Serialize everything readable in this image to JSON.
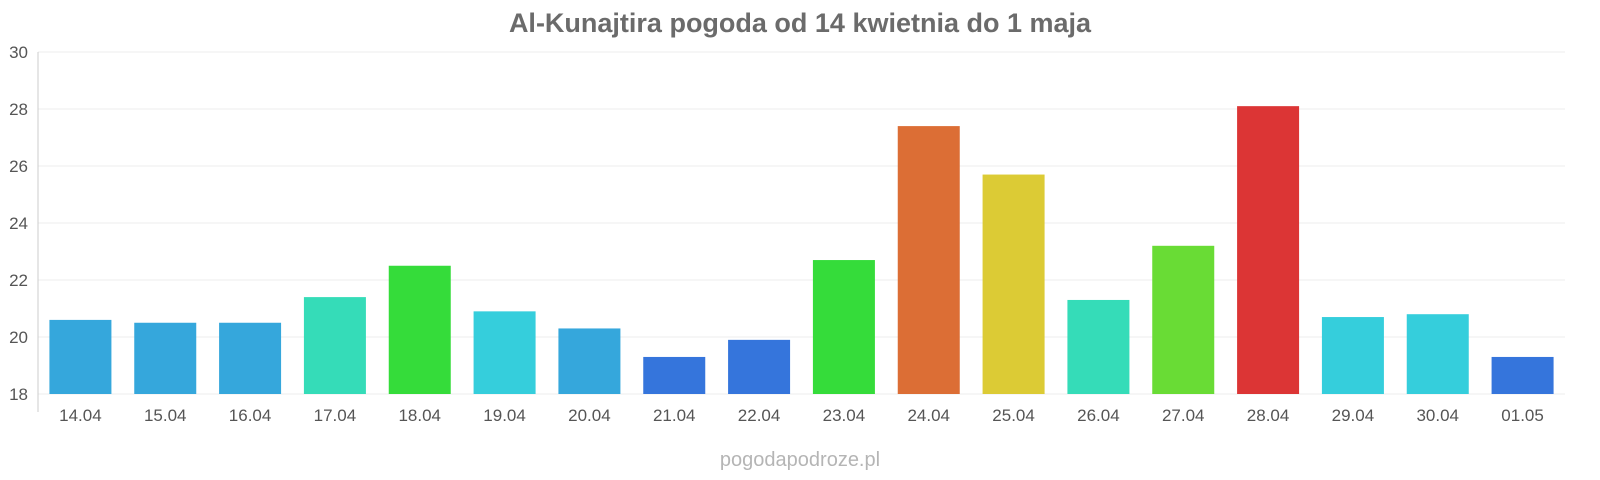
{
  "chart_data": {
    "type": "bar",
    "title": "Al-Kunajtira pogoda od 14 kwietnia do 1 maja",
    "xlabel": "",
    "ylabel": "",
    "ylim": [
      18,
      30
    ],
    "yticks": [
      "18",
      "20",
      "22",
      "24",
      "26",
      "28",
      "30"
    ],
    "grid": true,
    "categories": [
      "14.04",
      "15.04",
      "16.04",
      "17.04",
      "18.04",
      "19.04",
      "20.04",
      "21.04",
      "22.04",
      "23.04",
      "24.04",
      "25.04",
      "26.04",
      "27.04",
      "28.04",
      "29.04",
      "30.04",
      "01.05"
    ],
    "values": [
      20.6,
      20.5,
      20.5,
      21.4,
      22.5,
      20.9,
      20.3,
      19.3,
      19.9,
      22.7,
      27.4,
      25.7,
      21.3,
      23.2,
      28.1,
      20.7,
      20.8,
      19.3
    ],
    "colors": [
      "#35a7dc",
      "#35a7dc",
      "#35a7dc",
      "#35dcb8",
      "#35dc3a",
      "#35cedc",
      "#35a7dc",
      "#3575dc",
      "#3575dc",
      "#35dc3a",
      "#dc6e35",
      "#dccb35",
      "#35dcb8",
      "#69dc35",
      "#dc3535",
      "#35cedc",
      "#35cedc",
      "#3575dc"
    ]
  },
  "credit": "pogodapodroze.pl"
}
